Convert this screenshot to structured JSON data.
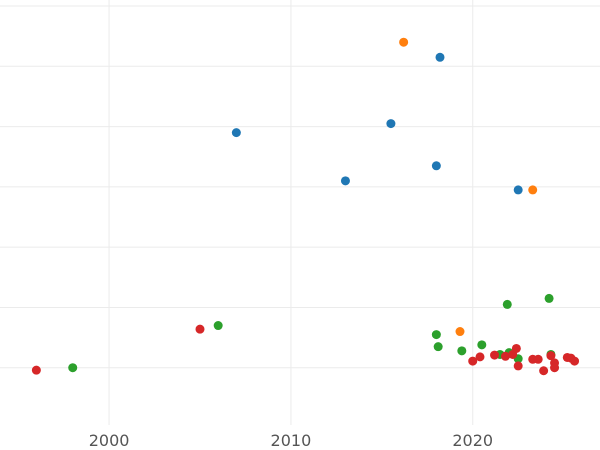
{
  "chart_data": {
    "type": "scatter",
    "title": "",
    "xlabel": "",
    "ylabel": "",
    "grid": true,
    "legend": "none",
    "x_ticks": [
      2000,
      2010,
      2020
    ],
    "x_tick_labels": [
      "2000",
      "2010",
      "2020"
    ],
    "y_ticks": [
      0,
      1,
      2,
      3,
      4,
      5,
      6
    ],
    "y_tick_labels": [],
    "xlim": [
      1994,
      2027
    ],
    "ylim": [
      -0.95,
      6.1
    ],
    "series": [
      {
        "color": "#1f77b4",
        "points": [
          [
            2007.0,
            3.9
          ],
          [
            2013.0,
            3.1
          ],
          [
            2015.5,
            4.05
          ],
          [
            2018.0,
            3.35
          ],
          [
            2018.2,
            5.15
          ],
          [
            2022.5,
            2.95
          ]
        ]
      },
      {
        "color": "#ff7f0e",
        "points": [
          [
            2016.2,
            5.4
          ],
          [
            2019.3,
            0.6
          ],
          [
            2023.3,
            2.95
          ]
        ]
      },
      {
        "color": "#2ca02c",
        "points": [
          [
            1998.0,
            0.0
          ],
          [
            2006.0,
            0.7
          ],
          [
            2018.0,
            0.55
          ],
          [
            2018.1,
            0.35
          ],
          [
            2019.4,
            0.28
          ],
          [
            2020.5,
            0.38
          ],
          [
            2021.5,
            0.22
          ],
          [
            2021.9,
            1.05
          ],
          [
            2022.0,
            0.25
          ],
          [
            2022.5,
            0.15
          ],
          [
            2024.2,
            1.15
          ],
          [
            2024.3,
            0.22
          ]
        ]
      },
      {
        "color": "#d62728",
        "points": [
          [
            1996.0,
            -0.04
          ],
          [
            2005.0,
            0.64
          ],
          [
            2020.0,
            0.11
          ],
          [
            2020.4,
            0.18
          ],
          [
            2021.2,
            0.21
          ],
          [
            2021.8,
            0.19
          ],
          [
            2022.2,
            0.22
          ],
          [
            2022.4,
            0.32
          ],
          [
            2022.5,
            0.03
          ],
          [
            2023.3,
            0.14
          ],
          [
            2023.6,
            0.14
          ],
          [
            2023.9,
            -0.05
          ],
          [
            2024.3,
            0.2
          ],
          [
            2024.5,
            0.08
          ],
          [
            2024.5,
            0.0
          ],
          [
            2025.2,
            0.17
          ],
          [
            2025.4,
            0.16
          ],
          [
            2025.6,
            0.11
          ]
        ]
      }
    ]
  }
}
